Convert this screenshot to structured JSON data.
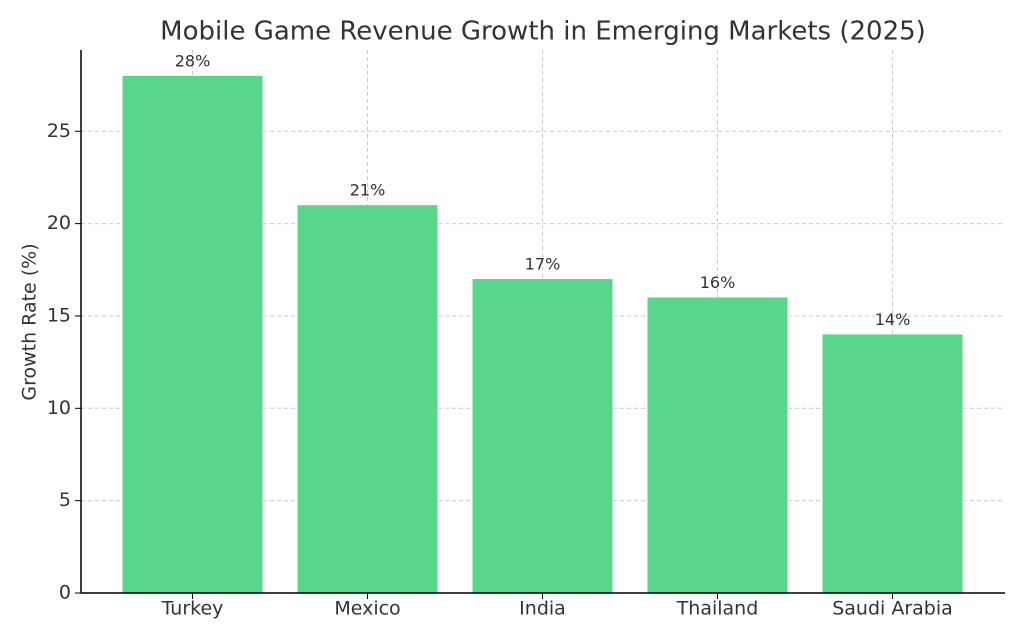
{
  "chart_data": {
    "type": "bar",
    "title": "Mobile Game Revenue Growth in Emerging Markets (2025)",
    "y_label": "Growth Rate (%)",
    "categories": [
      "Turkey",
      "Mexico",
      "India",
      "Thailand",
      "Saudi Arabia"
    ],
    "values": [
      28,
      21,
      17,
      16,
      14
    ],
    "value_labels": [
      "28%",
      "21%",
      "17%",
      "16%",
      "14%"
    ],
    "color": "#5ad68c",
    "ylim": [
      0,
      29.4
    ],
    "yticks": [
      0,
      5,
      10,
      15,
      20,
      25
    ],
    "grid": true
  }
}
